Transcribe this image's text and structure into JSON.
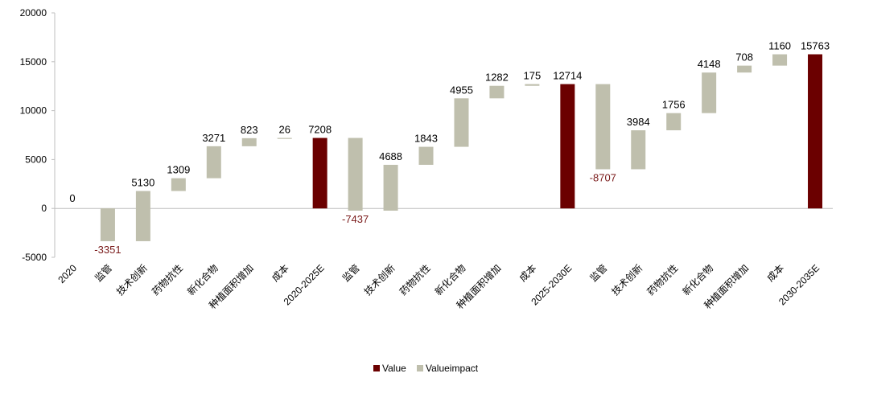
{
  "chart_data": {
    "type": "waterfall",
    "title": "",
    "xlabel": "",
    "ylabel": "",
    "ylim": [
      -5000,
      20000
    ],
    "yticks": [
      -5000,
      0,
      5000,
      10000,
      15000,
      20000
    ],
    "ytick_labels": [
      "-5000",
      "0",
      "5000",
      "10000",
      "15000",
      "20000"
    ],
    "colors": {
      "value": "#6b0000",
      "impact": "#bfbfad",
      "negative_label": "#7a1a1a",
      "axis": "#bfbfbf"
    },
    "legend": [
      {
        "name": "Value",
        "color": "#6b0000"
      },
      {
        "name": "Valueimpact",
        "color": "#bfbfad"
      }
    ],
    "legend_position": "bottom-center",
    "points": [
      {
        "label": "2020",
        "kind": "value",
        "start": 0,
        "end": 0,
        "text": "0"
      },
      {
        "label": "监管",
        "kind": "impact",
        "start": 0,
        "end": -3351,
        "text": "-3351"
      },
      {
        "label": "技术创新",
        "kind": "impact",
        "start": -3351,
        "end": 1779,
        "text": "5130"
      },
      {
        "label": "药物抗性",
        "kind": "impact",
        "start": 1779,
        "end": 3088,
        "text": "1309"
      },
      {
        "label": "新化合物",
        "kind": "impact",
        "start": 3088,
        "end": 6359,
        "text": "3271"
      },
      {
        "label": "种植面积增加",
        "kind": "impact",
        "start": 6359,
        "end": 7182,
        "text": "823"
      },
      {
        "label": "成本",
        "kind": "impact",
        "start": 7182,
        "end": 7208,
        "text": "26"
      },
      {
        "label": "2020-2025E",
        "kind": "value",
        "start": 0,
        "end": 7208,
        "text": "7208"
      },
      {
        "label": "监管",
        "kind": "impact",
        "start": 7208,
        "end": -229,
        "text": "-7437"
      },
      {
        "label": "技术创新",
        "kind": "impact",
        "start": -229,
        "end": 4459,
        "text": "4688"
      },
      {
        "label": "药物抗性",
        "kind": "impact",
        "start": 4459,
        "end": 6302,
        "text": "1843"
      },
      {
        "label": "新化合物",
        "kind": "impact",
        "start": 6302,
        "end": 11257,
        "text": "4955"
      },
      {
        "label": "种植面积增加",
        "kind": "impact",
        "start": 11257,
        "end": 12539,
        "text": "1282"
      },
      {
        "label": "成本",
        "kind": "impact",
        "start": 12539,
        "end": 12714,
        "text": "175"
      },
      {
        "label": "2025-2030E",
        "kind": "value",
        "start": 0,
        "end": 12714,
        "text": "12714"
      },
      {
        "label": "监管",
        "kind": "impact",
        "start": 12714,
        "end": 4007,
        "text": "-8707"
      },
      {
        "label": "技术创新",
        "kind": "impact",
        "start": 4007,
        "end": 7991,
        "text": "3984"
      },
      {
        "label": "药物抗性",
        "kind": "impact",
        "start": 7991,
        "end": 9747,
        "text": "1756"
      },
      {
        "label": "新化合物",
        "kind": "impact",
        "start": 9747,
        "end": 13895,
        "text": "4148"
      },
      {
        "label": "种植面积增加",
        "kind": "impact",
        "start": 13895,
        "end": 14603,
        "text": "708"
      },
      {
        "label": "成本",
        "kind": "impact",
        "start": 14603,
        "end": 15763,
        "text": "1160"
      },
      {
        "label": "2030-2035E",
        "kind": "value",
        "start": 0,
        "end": 15763,
        "text": "15763"
      }
    ]
  }
}
